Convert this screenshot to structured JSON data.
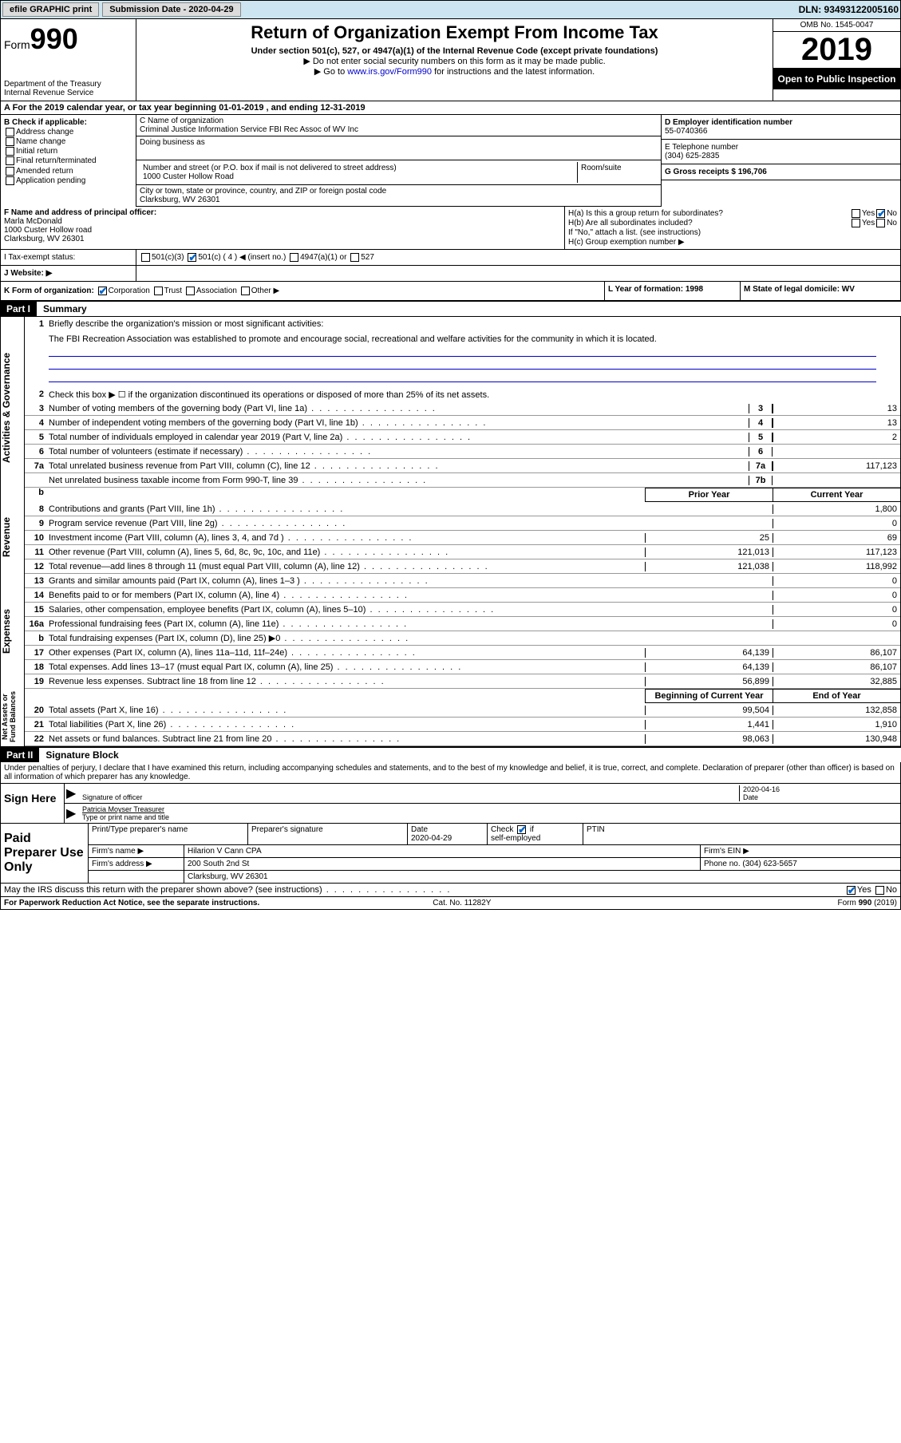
{
  "topbar": {
    "efile": "efile GRAPHIC print",
    "submission": "Submission Date - 2020-04-29",
    "dln": "DLN: 93493122005160"
  },
  "header": {
    "form_prefix": "Form",
    "form_number": "990",
    "dept": "Department of the Treasury\nInternal Revenue Service",
    "title": "Return of Organization Exempt From Income Tax",
    "sub": "Under section 501(c), 527, or 4947(a)(1) of the Internal Revenue Code (except private foundations)",
    "note1": "▶ Do not enter social security numbers on this form as it may be made public.",
    "note2_pre": "▶ Go to ",
    "note2_link": "www.irs.gov/Form990",
    "note2_post": " for instructions and the latest information.",
    "omb": "OMB No. 1545-0047",
    "year": "2019",
    "public": "Open to Public Inspection"
  },
  "rowA": "A For the 2019 calendar year, or tax year beginning 01-01-2019   , and ending 12-31-2019",
  "B": {
    "label": "B Check if applicable:",
    "items": [
      "Address change",
      "Name change",
      "Initial return",
      "Final return/terminated",
      "Amended return",
      "Application pending"
    ]
  },
  "C": {
    "name_label": "C Name of organization",
    "name": "Criminal Justice Information Service FBI Rec Assoc of WV Inc",
    "dba_label": "Doing business as",
    "street_label": "Number and street (or P.O. box if mail is not delivered to street address)",
    "street": "1000 Custer Hollow Road",
    "room_label": "Room/suite",
    "city_label": "City or town, state or province, country, and ZIP or foreign postal code",
    "city": "Clarksburg, WV  26301"
  },
  "D": {
    "ein_label": "D Employer identification number",
    "ein": "55-0740366",
    "phone_label": "E Telephone number",
    "phone": "(304) 625-2835",
    "gross_label": "G Gross receipts $ 196,706"
  },
  "F": {
    "label": "F  Name and address of principal officer:",
    "name": "Marla McDonald",
    "street": "1000 Custer Hollow road",
    "city": "Clarksburg, WV  26301"
  },
  "H": {
    "a": "H(a)  Is this a group return for subordinates?",
    "b": "H(b)  Are all subordinates included?",
    "b_note": "If \"No,\" attach a list. (see instructions)",
    "c": "H(c)  Group exemption number ▶"
  },
  "I": {
    "label": "I   Tax-exempt status:",
    "opts": [
      "501(c)(3)",
      "501(c) ( 4 ) ◀ (insert no.)",
      "4947(a)(1) or",
      "527"
    ]
  },
  "J": {
    "label": "J   Website: ▶"
  },
  "K": {
    "label": "K Form of organization:",
    "opts": [
      "Corporation",
      "Trust",
      "Association",
      "Other ▶"
    ]
  },
  "L": {
    "label": "L Year of formation: 1998"
  },
  "M": {
    "label": "M State of legal domicile: WV"
  },
  "partI": {
    "hdr": "Part I",
    "title": "Summary"
  },
  "summary": {
    "vtab1": "Activities & Governance",
    "vtab2": "Revenue",
    "vtab3": "Expenses",
    "vtab4": "Net Assets or Fund Balances",
    "line1": "Briefly describe the organization's mission or most significant activities:",
    "mission": "The FBI Recreation Association was established to promote and encourage social, recreational and welfare activities for the community in which it is located.",
    "line2": "Check this box ▶ ☐  if the organization discontinued its operations or disposed of more than 25% of its net assets.",
    "rows_guv": [
      {
        "n": "3",
        "d": "Number of voting members of the governing body (Part VI, line 1a)",
        "box": "3",
        "v": "13"
      },
      {
        "n": "4",
        "d": "Number of independent voting members of the governing body (Part VI, line 1b)",
        "box": "4",
        "v": "13"
      },
      {
        "n": "5",
        "d": "Total number of individuals employed in calendar year 2019 (Part V, line 2a)",
        "box": "5",
        "v": "2"
      },
      {
        "n": "6",
        "d": "Total number of volunteers (estimate if necessary)",
        "box": "6",
        "v": ""
      },
      {
        "n": "7a",
        "d": "Total unrelated business revenue from Part VIII, column (C), line 12",
        "box": "7a",
        "v": "117,123"
      },
      {
        "n": "",
        "d": "Net unrelated business taxable income from Form 990-T, line 39",
        "box": "7b",
        "v": ""
      }
    ],
    "col_hdr": {
      "b": "b",
      "py": "Prior Year",
      "cy": "Current Year"
    },
    "rows_rev": [
      {
        "n": "8",
        "d": "Contributions and grants (Part VIII, line 1h)",
        "py": "",
        "cy": "1,800"
      },
      {
        "n": "9",
        "d": "Program service revenue (Part VIII, line 2g)",
        "py": "",
        "cy": "0"
      },
      {
        "n": "10",
        "d": "Investment income (Part VIII, column (A), lines 3, 4, and 7d )",
        "py": "25",
        "cy": "69"
      },
      {
        "n": "11",
        "d": "Other revenue (Part VIII, column (A), lines 5, 6d, 8c, 9c, 10c, and 11e)",
        "py": "121,013",
        "cy": "117,123"
      },
      {
        "n": "12",
        "d": "Total revenue—add lines 8 through 11 (must equal Part VIII, column (A), line 12)",
        "py": "121,038",
        "cy": "118,992"
      }
    ],
    "rows_exp": [
      {
        "n": "13",
        "d": "Grants and similar amounts paid (Part IX, column (A), lines 1–3 )",
        "py": "",
        "cy": "0"
      },
      {
        "n": "14",
        "d": "Benefits paid to or for members (Part IX, column (A), line 4)",
        "py": "",
        "cy": "0"
      },
      {
        "n": "15",
        "d": "Salaries, other compensation, employee benefits (Part IX, column (A), lines 5–10)",
        "py": "",
        "cy": "0"
      },
      {
        "n": "16a",
        "d": "Professional fundraising fees (Part IX, column (A), line 11e)",
        "py": "",
        "cy": "0"
      },
      {
        "n": "b",
        "d": "Total fundraising expenses (Part IX, column (D), line 25) ▶0",
        "py": "shaded",
        "cy": "shaded"
      },
      {
        "n": "17",
        "d": "Other expenses (Part IX, column (A), lines 11a–11d, 11f–24e)",
        "py": "64,139",
        "cy": "86,107"
      },
      {
        "n": "18",
        "d": "Total expenses. Add lines 13–17 (must equal Part IX, column (A), line 25)",
        "py": "64,139",
        "cy": "86,107"
      },
      {
        "n": "19",
        "d": "Revenue less expenses. Subtract line 18 from line 12",
        "py": "56,899",
        "cy": "32,885"
      }
    ],
    "col_hdr2": {
      "py": "Beginning of Current Year",
      "cy": "End of Year"
    },
    "rows_net": [
      {
        "n": "20",
        "d": "Total assets (Part X, line 16)",
        "py": "99,504",
        "cy": "132,858"
      },
      {
        "n": "21",
        "d": "Total liabilities (Part X, line 26)",
        "py": "1,441",
        "cy": "1,910"
      },
      {
        "n": "22",
        "d": "Net assets or fund balances. Subtract line 21 from line 20",
        "py": "98,063",
        "cy": "130,948"
      }
    ]
  },
  "partII": {
    "hdr": "Part II",
    "title": "Signature Block"
  },
  "sig": {
    "intro": "Under penalties of perjury, I declare that I have examined this return, including accompanying schedules and statements, and to the best of my knowledge and belief, it is true, correct, and complete. Declaration of preparer (other than officer) is based on all information of which preparer has any knowledge.",
    "sign_here": "Sign Here",
    "sig_officer": "Signature of officer",
    "date": "2020-04-16",
    "date_lbl": "Date",
    "name": "Patricia Moyser  Treasurer",
    "name_lbl": "Type or print name and title",
    "paid": "Paid Preparer Use Only",
    "prep_name_lbl": "Print/Type preparer's name",
    "prep_sig_lbl": "Preparer's signature",
    "prep_date_lbl": "Date",
    "prep_date": "2020-04-29",
    "check_lbl": "Check ☑ if self-employed",
    "ptin_lbl": "PTIN",
    "firm_name_lbl": "Firm's name    ▶",
    "firm_name": "Hilarion V Cann CPA",
    "firm_ein_lbl": "Firm's EIN ▶",
    "firm_addr_lbl": "Firm's address ▶",
    "firm_addr": "200 South 2nd St",
    "firm_city": "Clarksburg, WV  26301",
    "firm_phone_lbl": "Phone no. (304) 623-5657",
    "discuss": "May the IRS discuss this return with the preparer shown above? (see instructions)"
  },
  "footer": {
    "left": "For Paperwork Reduction Act Notice, see the separate instructions.",
    "mid": "Cat. No. 11282Y",
    "right": "Form 990 (2019)"
  }
}
